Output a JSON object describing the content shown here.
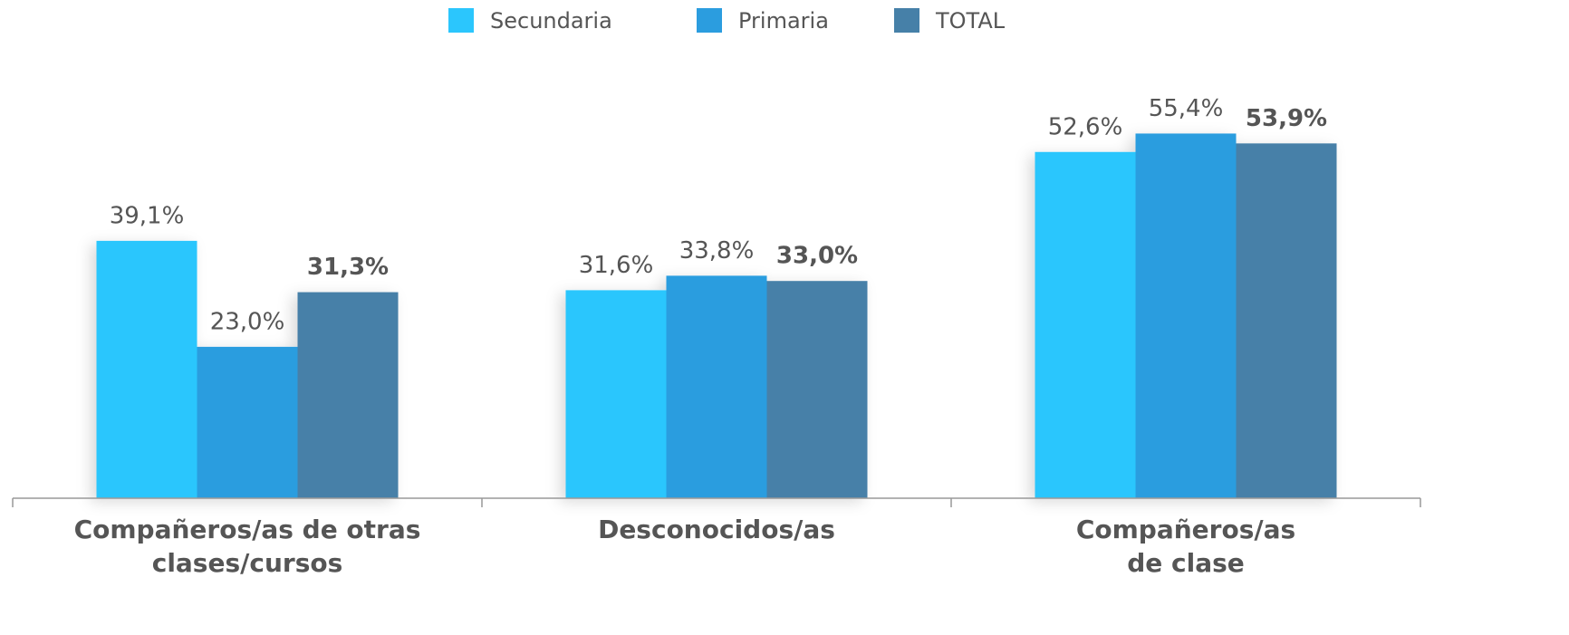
{
  "chart_data": {
    "type": "bar",
    "categories": [
      "Compañeros/as de otras\nclases/cursos",
      "Desconocidos/as",
      "Compañeros/as\nde clase"
    ],
    "series": [
      {
        "name": "Secundaria",
        "color": "#2bc6fd",
        "values": [
          39.1,
          31.6,
          52.6
        ],
        "value_labels": [
          "39,1%",
          "31,6%",
          "52,6%"
        ]
      },
      {
        "name": "Primaria",
        "color": "#2b9ddf",
        "values": [
          23.0,
          33.8,
          55.4
        ],
        "value_labels": [
          "23,0%",
          "33,8%",
          "55,4%"
        ]
      },
      {
        "name": "TOTAL",
        "color": "#4680a8",
        "values": [
          31.3,
          33.0,
          53.9
        ],
        "value_labels": [
          "31,3%",
          "33,0%",
          "53,9%"
        ]
      }
    ],
    "ylim": [
      0,
      60
    ],
    "legend": "top"
  }
}
